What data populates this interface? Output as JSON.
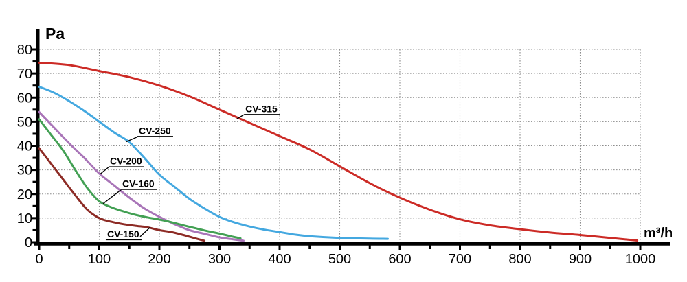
{
  "page": {
    "background": "#ffffff"
  },
  "chart_data": {
    "type": "line",
    "title": "",
    "xlabel": "m³/h",
    "ylabel": "Pa",
    "xlim": [
      0,
      1000
    ],
    "ylim": [
      0,
      80
    ],
    "xticks": [
      0,
      100,
      200,
      300,
      400,
      500,
      600,
      700,
      800,
      900,
      1000
    ],
    "yticks": [
      0,
      10,
      20,
      30,
      40,
      50,
      60,
      70,
      80
    ],
    "x_minor_step": 50,
    "y_minor_step": 5,
    "grid": "dotted",
    "grid_color": "#8c8c8c",
    "axis_color": "#000000",
    "legend_position": "inline-labels",
    "series": [
      {
        "name": "CV-315",
        "color": "#cc2b26",
        "label_xy": [
          343,
          54.0
        ],
        "leader": [
          [
            340.5,
            52.9
          ],
          [
            329.0,
            51.2
          ]
        ],
        "points": [
          [
            0,
            74.5
          ],
          [
            50,
            73.5
          ],
          [
            100,
            71
          ],
          [
            150,
            68.5
          ],
          [
            200,
            65
          ],
          [
            250,
            60.5
          ],
          [
            300,
            55
          ],
          [
            350,
            49.5
          ],
          [
            400,
            44
          ],
          [
            450,
            38.5
          ],
          [
            500,
            31.5
          ],
          [
            550,
            24.5
          ],
          [
            600,
            18.5
          ],
          [
            650,
            13.5
          ],
          [
            700,
            9.5
          ],
          [
            750,
            7
          ],
          [
            800,
            5.4
          ],
          [
            850,
            4
          ],
          [
            900,
            3
          ],
          [
            950,
            1.8
          ],
          [
            995,
            0.7
          ]
        ]
      },
      {
        "name": "CV-250",
        "color": "#44a8e0",
        "label_xy": [
          165.7,
          44.9
        ],
        "leader": [
          [
            163.4,
            43.7
          ],
          [
            145.1,
            41.7
          ]
        ],
        "points": [
          [
            0,
            64.5
          ],
          [
            25,
            62
          ],
          [
            50,
            58.5
          ],
          [
            75,
            54.5
          ],
          [
            100,
            50
          ],
          [
            125,
            45.5
          ],
          [
            150,
            41.5
          ],
          [
            175,
            35
          ],
          [
            200,
            28
          ],
          [
            225,
            23
          ],
          [
            250,
            18
          ],
          [
            275,
            14
          ],
          [
            300,
            10.5
          ],
          [
            325,
            8.2
          ],
          [
            350,
            6.5
          ],
          [
            375,
            5.2
          ],
          [
            400,
            4.2
          ],
          [
            425,
            3.2
          ],
          [
            450,
            2.5
          ],
          [
            500,
            1.8
          ],
          [
            550,
            1.5
          ],
          [
            580,
            1.4
          ]
        ]
      },
      {
        "name": "CV-200",
        "color": "#a975b8",
        "label_xy": [
          117.7,
          32.3
        ],
        "leader": [
          [
            115.4,
            31.1
          ],
          [
            101.7,
            28.3
          ]
        ],
        "points": [
          [
            0,
            54
          ],
          [
            25,
            47.5
          ],
          [
            50,
            41
          ],
          [
            75,
            35
          ],
          [
            100,
            28.5
          ],
          [
            125,
            23.5
          ],
          [
            150,
            18.5
          ],
          [
            175,
            14
          ],
          [
            200,
            10.5
          ],
          [
            225,
            7.5
          ],
          [
            250,
            5
          ],
          [
            275,
            3.5
          ],
          [
            300,
            2
          ],
          [
            320,
            1.3
          ],
          [
            340,
            0.6
          ]
        ]
      },
      {
        "name": "CV-160",
        "color": "#43a054",
        "label_xy": [
          138.3,
          22.9
        ],
        "leader": [
          [
            136.0,
            21.7
          ],
          [
            106.3,
            16.0
          ]
        ],
        "points": [
          [
            0,
            51
          ],
          [
            20,
            44.5
          ],
          [
            40,
            38
          ],
          [
            60,
            30
          ],
          [
            80,
            22.5
          ],
          [
            100,
            17
          ],
          [
            120,
            14.5
          ],
          [
            140,
            12.8
          ],
          [
            160,
            11.4
          ],
          [
            180,
            10.3
          ],
          [
            200,
            9.4
          ],
          [
            220,
            8.3
          ],
          [
            240,
            7
          ],
          [
            260,
            5.8
          ],
          [
            280,
            4.6
          ],
          [
            300,
            3.6
          ],
          [
            320,
            2.4
          ],
          [
            335,
            1.6
          ]
        ]
      },
      {
        "name": "CV-150",
        "color": "#8d2b25",
        "label_xy": [
          113.1,
          2.0
        ],
        "leader": [
          [
            168.0,
            2.3
          ],
          [
            185.1,
            6.3
          ]
        ],
        "points": [
          [
            0,
            39
          ],
          [
            20,
            32.5
          ],
          [
            40,
            26
          ],
          [
            60,
            19.5
          ],
          [
            80,
            13.5
          ],
          [
            100,
            10
          ],
          [
            120,
            8.5
          ],
          [
            140,
            7.5
          ],
          [
            160,
            6.8
          ],
          [
            180,
            6.2
          ],
          [
            200,
            5
          ],
          [
            220,
            4.2
          ],
          [
            240,
            3
          ],
          [
            260,
            1.6
          ],
          [
            275,
            0.6
          ]
        ]
      }
    ]
  }
}
